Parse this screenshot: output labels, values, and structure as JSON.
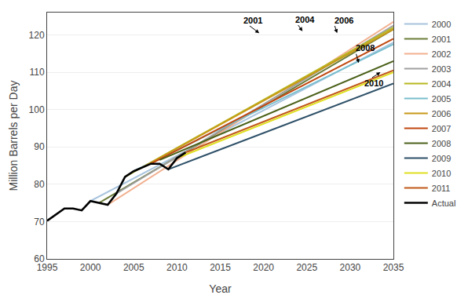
{
  "chart_data": {
    "type": "line",
    "xlabel": "Year",
    "ylabel": "Million Barrels per Day",
    "xlim": [
      1995,
      2035
    ],
    "ylim": [
      60,
      126
    ],
    "xticks": [
      1995,
      2000,
      2005,
      2010,
      2015,
      2020,
      2025,
      2030,
      2035
    ],
    "yticks": [
      60,
      70,
      80,
      90,
      100,
      110,
      120
    ],
    "grid": "y",
    "legend": "right",
    "series": [
      {
        "name": "2000",
        "color": "#a8c4de",
        "x": [
          2000,
          2035
        ],
        "values": [
          75.5,
          118.0
        ]
      },
      {
        "name": "2001",
        "color": "#6b7c3a",
        "x": [
          2001,
          2035
        ],
        "values": [
          75.0,
          121.5
        ]
      },
      {
        "name": "2002",
        "color": "#f2b090",
        "x": [
          2002,
          2035
        ],
        "values": [
          74.5,
          123.5
        ]
      },
      {
        "name": "2003",
        "color": "#a0a0a0",
        "x": [
          2003,
          2035
        ],
        "values": [
          77.5,
          122.5
        ]
      },
      {
        "name": "2004",
        "color": "#b8b820",
        "x": [
          2004,
          2035
        ],
        "values": [
          82.0,
          122.0
        ]
      },
      {
        "name": "2005",
        "color": "#78bece",
        "x": [
          2005,
          2035
        ],
        "values": [
          83.5,
          117.5
        ]
      },
      {
        "name": "2006",
        "color": "#c89818",
        "x": [
          2006,
          2035
        ],
        "values": [
          84.5,
          121.5
        ]
      },
      {
        "name": "2007",
        "color": "#c04810",
        "x": [
          2007,
          2035
        ],
        "values": [
          85.5,
          119.0
        ]
      },
      {
        "name": "2008",
        "color": "#4a6018",
        "x": [
          2008,
          2035
        ],
        "values": [
          86.5,
          113.0
        ]
      },
      {
        "name": "2009",
        "color": "#2e5068",
        "x": [
          2009,
          2035
        ],
        "values": [
          84.0,
          107.0
        ]
      },
      {
        "name": "2010",
        "color": "#e0e020",
        "x": [
          2010,
          2035
        ],
        "values": [
          87.0,
          110.0
        ]
      },
      {
        "name": "2011",
        "color": "#c05818",
        "x": [
          2011,
          2035
        ],
        "values": [
          88.5,
          110.5
        ]
      },
      {
        "name": "Actual",
        "color": "#000000",
        "x": [
          1995,
          1996,
          1997,
          1998,
          1999,
          2000,
          2001,
          2002,
          2003,
          2004,
          2005,
          2006,
          2007,
          2008,
          2009,
          2010,
          2011
        ],
        "values": [
          70.2,
          71.8,
          73.5,
          73.5,
          73.0,
          75.5,
          75.0,
          74.5,
          77.5,
          82.0,
          83.5,
          84.5,
          85.5,
          85.5,
          84.0,
          87.0,
          88.5
        ]
      }
    ],
    "annotations": [
      {
        "text": "2001",
        "x": 2019.5,
        "y": 120.5,
        "text_x": 2017.5,
        "text_y": 124.0
      },
      {
        "text": "2004",
        "x": 2024.5,
        "y": 121.0,
        "text_x": 2023.5,
        "text_y": 124.2
      },
      {
        "text": "2006",
        "x": 2028.5,
        "y": 120.5,
        "text_x": 2028.0,
        "text_y": 124.0
      },
      {
        "text": "2008",
        "x": 2031.0,
        "y": 112.5,
        "text_x": 2030.5,
        "text_y": 116.5
      },
      {
        "text": "2010",
        "x": 2033.5,
        "y": 110.0,
        "text_x": 2031.5,
        "text_y": 107.0
      }
    ]
  }
}
